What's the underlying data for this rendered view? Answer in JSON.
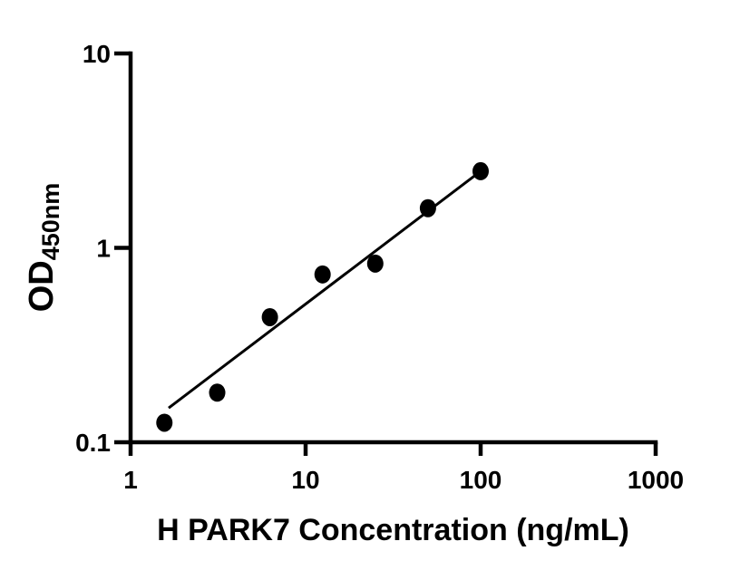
{
  "figure": {
    "background_color": "#ffffff",
    "ink_color": "#000000"
  },
  "chart_data": {
    "type": "scatter",
    "title": "",
    "xlabel": "H PARK7 Concentration (ng/mL)",
    "ylabel": "OD450nm",
    "ylabel_parts": {
      "main": "OD",
      "subscript": "450nm"
    },
    "x_scale": "log10",
    "y_scale": "log10",
    "xlim": [
      1,
      1000
    ],
    "ylim": [
      0.1,
      10
    ],
    "x_ticks": [
      {
        "value": 1,
        "label": "1"
      },
      {
        "value": 10,
        "label": "10"
      },
      {
        "value": 100,
        "label": "100"
      },
      {
        "value": 1000,
        "label": "1000"
      }
    ],
    "y_ticks": [
      {
        "value": 10,
        "label": "10"
      },
      {
        "value": 1,
        "label": "1"
      },
      {
        "value": 0.1,
        "label": "0.1"
      }
    ],
    "grid": false,
    "legend": null,
    "series": [
      {
        "name": "standard-curve-points",
        "marker": "filled-circle",
        "color": "#000000",
        "points": [
          {
            "x": 1.56,
            "y": 0.126
          },
          {
            "x": 3.125,
            "y": 0.18
          },
          {
            "x": 6.25,
            "y": 0.44
          },
          {
            "x": 12.5,
            "y": 0.73
          },
          {
            "x": 25,
            "y": 0.83
          },
          {
            "x": 50,
            "y": 1.6
          },
          {
            "x": 100,
            "y": 2.48
          }
        ]
      }
    ],
    "fit_line": {
      "x1": 1.65,
      "y1": 0.15,
      "x2": 100,
      "y2": 2.48,
      "color": "#000000"
    }
  }
}
